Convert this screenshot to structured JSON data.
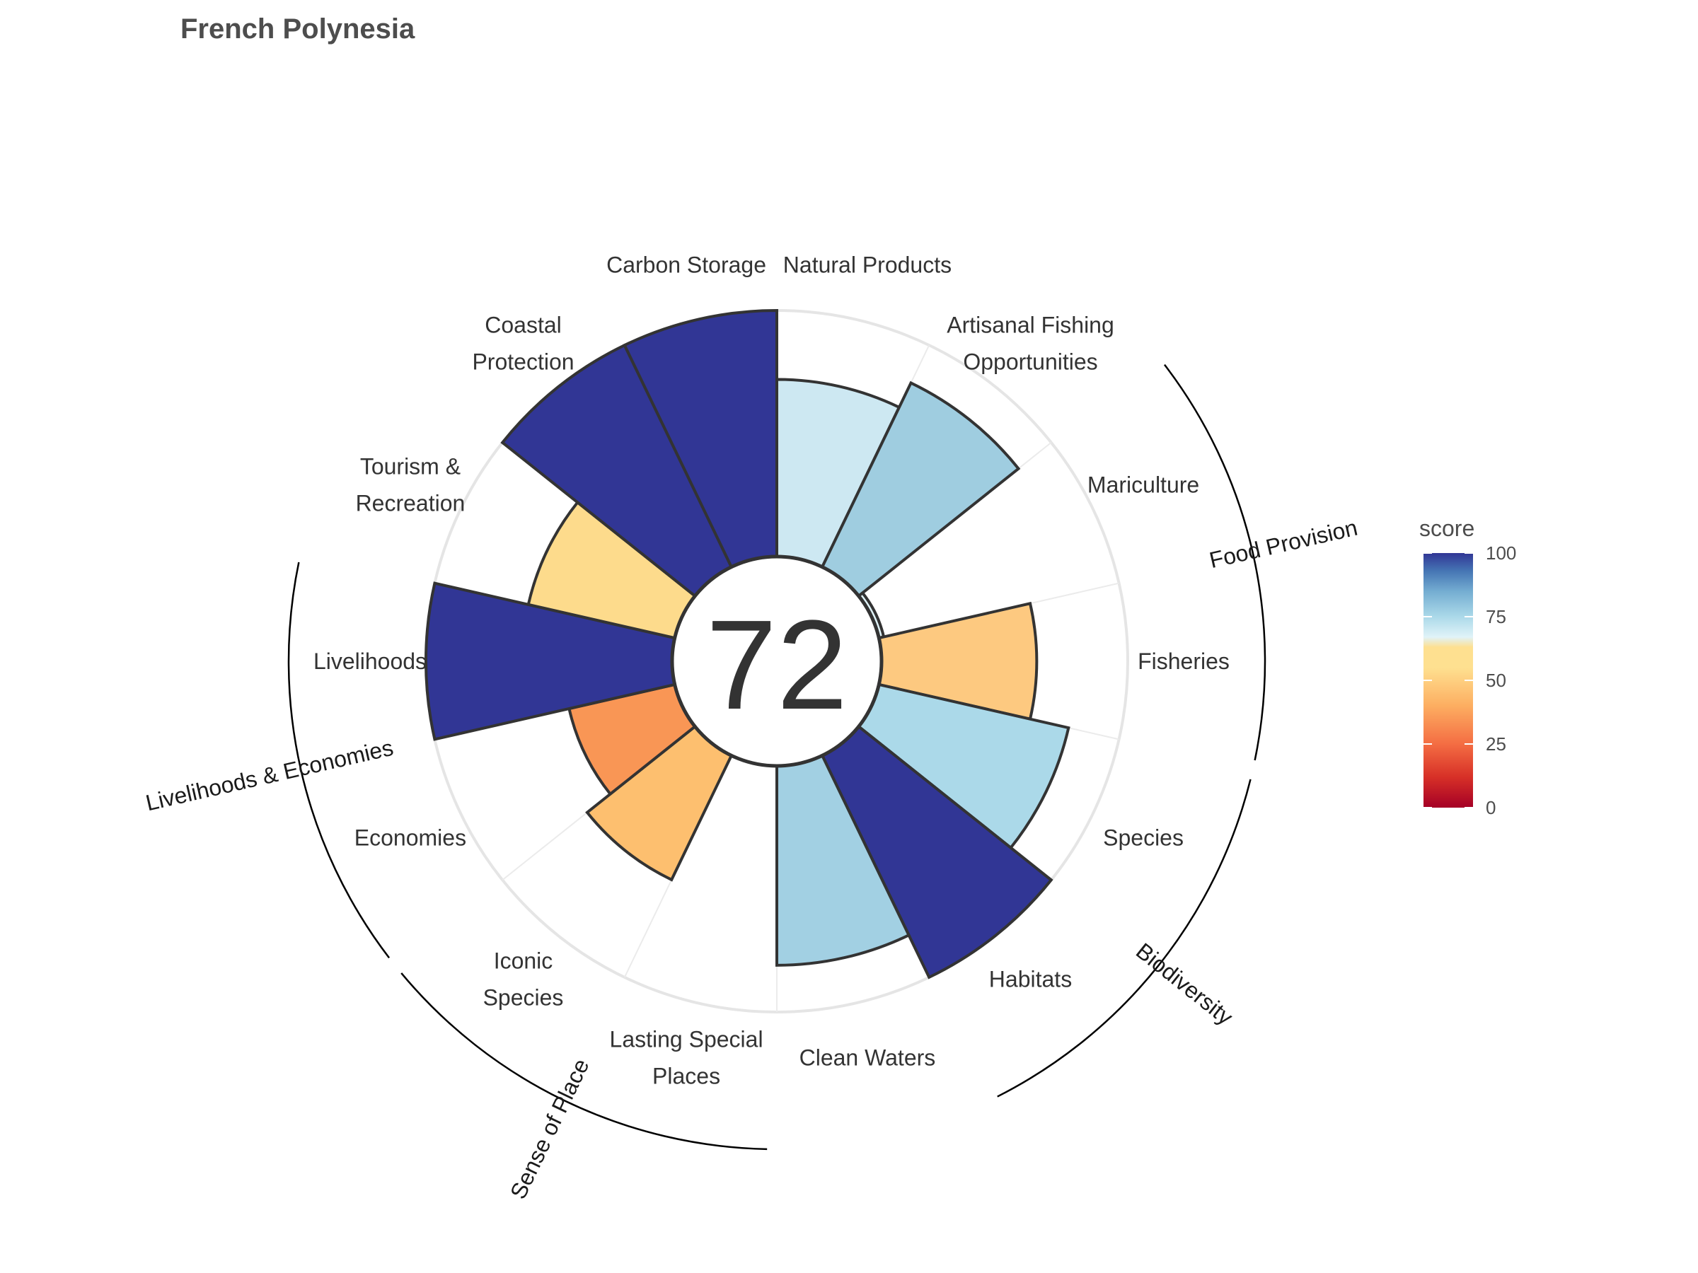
{
  "chart_data": {
    "type": "bar",
    "title": "French Polynesia",
    "overall_score": "72",
    "ylim": [
      0,
      100
    ],
    "categories": [
      "Natural Products",
      "Artisanal Fishing Opportunities",
      "Mariculture",
      "Fisheries",
      "Species",
      "Habitats",
      "Clean Waters",
      "Lasting Special Places",
      "Iconic Species",
      "Economies",
      "Livelihoods",
      "Tourism & Recreation",
      "Coastal Protection",
      "Carbon Storage"
    ],
    "category_display_lines": [
      [
        "Natural Products"
      ],
      [
        "Artisanal Fishing",
        "Opportunities"
      ],
      [
        "Mariculture"
      ],
      [
        "Fisheries"
      ],
      [
        "Species"
      ],
      [
        "Habitats"
      ],
      [
        "Clean Waters"
      ],
      [
        "Lasting Special",
        "Places"
      ],
      [
        "Iconic",
        "Species"
      ],
      [
        "Economies"
      ],
      [
        "Livelihoods"
      ],
      [
        "Tourism &",
        "Recreation"
      ],
      [
        "Coastal",
        "Protection"
      ],
      [
        "Carbon Storage"
      ]
    ],
    "values": [
      72,
      83,
      2,
      63,
      79,
      100,
      81,
      0,
      56,
      44,
      100,
      61,
      100,
      100
    ],
    "colors": [
      "#cde8f2",
      "#9fcde0",
      "#e0f3f8",
      "#fdc980",
      "#abd9e9",
      "#313695",
      "#a2d0e3",
      "#ffffff",
      "#fdbf6f",
      "#f99655",
      "#313695",
      "#fddb8c",
      "#313695",
      "#313695"
    ],
    "groups": [
      {
        "label": "Food Provision",
        "members": [
          "Mariculture",
          "Fisheries"
        ]
      },
      {
        "label": "Biodiversity",
        "members": [
          "Species",
          "Habitats"
        ]
      },
      {
        "label": "Sense of Place",
        "members": [
          "Lasting Special Places",
          "Iconic Species"
        ]
      },
      {
        "label": "Livelihoods & Economies",
        "members": [
          "Economies",
          "Livelihoods"
        ]
      }
    ],
    "legend": {
      "title": "score",
      "ticks": [
        "100",
        "75",
        "50",
        "25",
        "0"
      ],
      "tick_values": [
        100,
        75,
        50,
        25,
        0
      ],
      "color_stops": [
        "#a50026",
        "#d73027",
        "#f46d43",
        "#fdae61",
        "#fee090",
        "#e0f3f8",
        "#abd9e9",
        "#74add1",
        "#4575b4",
        "#313695"
      ],
      "placement": "right"
    }
  }
}
